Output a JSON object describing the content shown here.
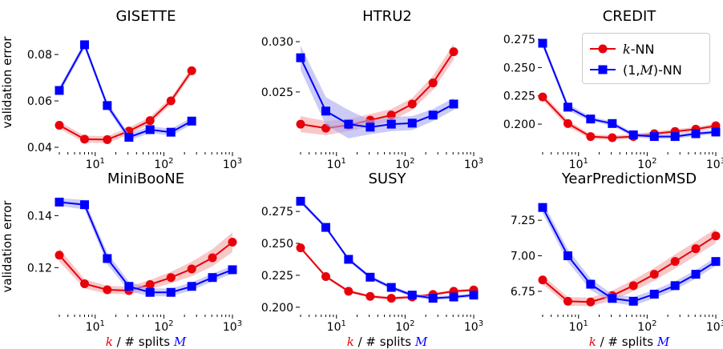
{
  "figure": {
    "ylabel": "validation error",
    "xlabel_parts": [
      "k",
      " / # splits ",
      "M"
    ]
  },
  "legend": {
    "knn_k": "k",
    "knn_suffix": "-NN",
    "onenn_prefix": "(1,",
    "onenn_m": "M",
    "onenn_suffix": ")-NN"
  },
  "colors": {
    "knn": "#e8000b",
    "onenn": "#0000ff",
    "knn_band": "#f4a3a3",
    "onenn_band": "#a9a9ef"
  },
  "chart_data": [
    {
      "type": "line",
      "title": "GISETTE",
      "x_scale": "log",
      "xlim": [
        3,
        1000
      ],
      "yticks": [
        0.04,
        0.06,
        0.08
      ],
      "ytick_labels": [
        "0.04",
        "0.06",
        "0.08"
      ],
      "ylim": [
        0.04,
        0.089
      ],
      "series": [
        {
          "name": "k-NN",
          "x": [
            3,
            7,
            15,
            31,
            63,
            127,
            255
          ],
          "y": [
            0.0495,
            0.0435,
            0.0433,
            0.047,
            0.0515,
            0.06,
            0.073
          ],
          "band": [
            0.0015,
            0.0015,
            0.0015,
            0.0015,
            0.0015,
            0.0015,
            0.0015
          ]
        },
        {
          "name": "(1,M)-NN",
          "x": [
            3,
            7,
            15,
            31,
            63,
            127,
            255
          ],
          "y": [
            0.0645,
            0.0842,
            0.058,
            0.0443,
            0.0476,
            0.0465,
            0.0513
          ],
          "band": [
            0.0015,
            0.0015,
            0.0015,
            0.0015,
            0.0015,
            0.0015,
            0.0015
          ]
        }
      ]
    },
    {
      "type": "line",
      "title": "HTRU2",
      "x_scale": "log",
      "xlim": [
        3,
        1000
      ],
      "yticks": [
        0.025,
        0.03
      ],
      "ytick_labels": [
        "0.025",
        "0.030"
      ],
      "ylim": [
        0.0195,
        0.0308
      ],
      "series": [
        {
          "name": "k-NN",
          "x": [
            3,
            7,
            15,
            31,
            63,
            127,
            255,
            511
          ],
          "y": [
            0.0218,
            0.0214,
            0.0217,
            0.0222,
            0.0227,
            0.0238,
            0.0259,
            0.029
          ],
          "band": [
            0.0008,
            0.0007,
            0.0006,
            0.0006,
            0.0006,
            0.0006,
            0.0007,
            0.0008
          ]
        },
        {
          "name": "(1,M)-NN",
          "x": [
            3,
            7,
            15,
            31,
            63,
            127,
            255,
            511
          ],
          "y": [
            0.0284,
            0.0231,
            0.0218,
            0.0215,
            0.0218,
            0.0219,
            0.0227,
            0.0238
          ],
          "band": [
            0.0012,
            0.0014,
            0.0014,
            0.0007,
            0.0007,
            0.0007,
            0.0006,
            0.0006
          ]
        }
      ]
    },
    {
      "type": "line",
      "title": "CREDIT",
      "x_scale": "log",
      "xlim": [
        3,
        1000
      ],
      "yticks": [
        0.2,
        0.225,
        0.25,
        0.275
      ],
      "ytick_labels": [
        "0.200",
        "0.225",
        "0.250",
        "0.275"
      ],
      "ylim": [
        0.1795,
        0.28
      ],
      "series": [
        {
          "name": "k-NN",
          "x": [
            3,
            7,
            15,
            31,
            63,
            127,
            255,
            511,
            1000
          ],
          "y": [
            0.224,
            0.2005,
            0.189,
            0.188,
            0.189,
            0.1915,
            0.1935,
            0.1955,
            0.1985
          ],
          "band": [
            0.003,
            0.003,
            0.002,
            0.002,
            0.002,
            0.002,
            0.002,
            0.002,
            0.002
          ]
        },
        {
          "name": "(1,M)-NN",
          "x": [
            3,
            7,
            15,
            31,
            63,
            127,
            255,
            511,
            1000
          ],
          "y": [
            0.2715,
            0.215,
            0.2045,
            0.2005,
            0.1905,
            0.189,
            0.189,
            0.1915,
            0.193
          ],
          "band": [
            0.003,
            0.003,
            0.002,
            0.002,
            0.002,
            0.002,
            0.002,
            0.002,
            0.002
          ]
        }
      ]
    },
    {
      "type": "line",
      "title": "MiniBooNE",
      "x_scale": "log",
      "xlim": [
        3,
        1000
      ],
      "yticks": [
        0.12,
        0.14
      ],
      "ytick_labels": [
        "0.12",
        "0.14"
      ],
      "ylim": [
        0.1038,
        0.1475
      ],
      "series": [
        {
          "name": "k-NN",
          "x": [
            3,
            7,
            15,
            31,
            63,
            127,
            255,
            511,
            1000
          ],
          "y": [
            0.1248,
            0.1138,
            0.1115,
            0.1112,
            0.1135,
            0.1162,
            0.1195,
            0.1238,
            0.1298
          ],
          "band": [
            0.0025,
            0.0018,
            0.0015,
            0.0015,
            0.0018,
            0.0022,
            0.0028,
            0.0033,
            0.0038
          ]
        },
        {
          "name": "(1,M)-NN",
          "x": [
            3,
            7,
            15,
            31,
            63,
            127,
            255,
            511,
            1000
          ],
          "y": [
            0.1452,
            0.1442,
            0.1235,
            0.1128,
            0.1105,
            0.1105,
            0.1128,
            0.1162,
            0.1192
          ],
          "band": [
            0.0015,
            0.0018,
            0.0022,
            0.0018,
            0.0015,
            0.0015,
            0.0015,
            0.0015,
            0.0015
          ]
        }
      ]
    },
    {
      "type": "line",
      "title": "SUSY",
      "x_scale": "log",
      "xlim": [
        3,
        1000
      ],
      "yticks": [
        0.2,
        0.225,
        0.25,
        0.275
      ],
      "ytick_labels": [
        "0.200",
        "0.225",
        "0.250",
        "0.275"
      ],
      "ylim": [
        0.198,
        0.287
      ],
      "series": [
        {
          "name": "k-NN",
          "x": [
            3,
            7,
            15,
            31,
            63,
            127,
            255,
            511,
            1000
          ],
          "y": [
            0.2465,
            0.224,
            0.2125,
            0.2085,
            0.207,
            0.208,
            0.21,
            0.2125,
            0.2135
          ],
          "band": [
            0.0012,
            0.0012,
            0.0012,
            0.0012,
            0.0012,
            0.0012,
            0.0012,
            0.0012,
            0.0012
          ]
        },
        {
          "name": "(1,M)-NN",
          "x": [
            3,
            7,
            15,
            31,
            63,
            127,
            255,
            511,
            1000
          ],
          "y": [
            0.283,
            0.2625,
            0.2375,
            0.2235,
            0.2155,
            0.2095,
            0.207,
            0.208,
            0.2095
          ],
          "band": [
            0.0015,
            0.0015,
            0.0015,
            0.0015,
            0.0015,
            0.0015,
            0.0015,
            0.0015,
            0.0015
          ]
        }
      ]
    },
    {
      "type": "line",
      "title": "YearPredictionMSD",
      "x_scale": "log",
      "xlim": [
        3,
        1000
      ],
      "yticks": [
        6.75,
        7.0,
        7.25
      ],
      "ytick_labels": [
        "6.75",
        "7.00",
        "7.25"
      ],
      "ylim": [
        6.62,
        7.42
      ],
      "series": [
        {
          "name": "k-NN",
          "x": [
            3,
            7,
            15,
            31,
            63,
            127,
            255,
            511,
            1000
          ],
          "y": [
            6.83,
            6.68,
            6.675,
            6.72,
            6.79,
            6.87,
            6.96,
            7.05,
            7.14
          ],
          "band": [
            0.03,
            0.03,
            0.03,
            0.035,
            0.04,
            0.045,
            0.05,
            0.05,
            0.05
          ]
        },
        {
          "name": "(1,M)-NN",
          "x": [
            3,
            7,
            15,
            31,
            63,
            127,
            255,
            511,
            1000
          ],
          "y": [
            7.34,
            7.0,
            6.8,
            6.7,
            6.68,
            6.73,
            6.79,
            6.87,
            6.96
          ],
          "band": [
            0.04,
            0.045,
            0.04,
            0.03,
            0.03,
            0.03,
            0.03,
            0.03,
            0.03
          ]
        }
      ]
    }
  ]
}
